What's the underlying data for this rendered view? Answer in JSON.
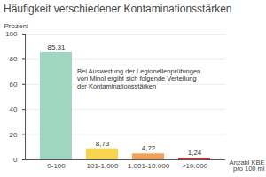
{
  "chart_data": {
    "type": "bar",
    "title": "Häufigkeit verschiedener Kontaminationsstärken",
    "y_label": "Prozent",
    "x_label": [
      "Anzahl KBE",
      "pro 100 ml"
    ],
    "annotation": [
      "Bei Auswertung der Legionellenprüfungen",
      "von Minol ergibt sich folgende Verteilung",
      "der Kontaminationsstärken"
    ],
    "categories": [
      "0-100",
      "101-1.000",
      "1.001-10.000",
      ">10.000"
    ],
    "values": [
      85.31,
      8.73,
      4.72,
      1.24
    ],
    "value_labels": [
      "85,31",
      "8,73",
      "4,72",
      "1,24"
    ],
    "colors": [
      "#9fd6bf",
      "#f5d64e",
      "#f2a25a",
      "#d62a2a"
    ],
    "ylim": [
      0,
      100
    ],
    "yticks": [
      0,
      20,
      40,
      60,
      80,
      100
    ],
    "grid": true,
    "data_labels": true
  }
}
